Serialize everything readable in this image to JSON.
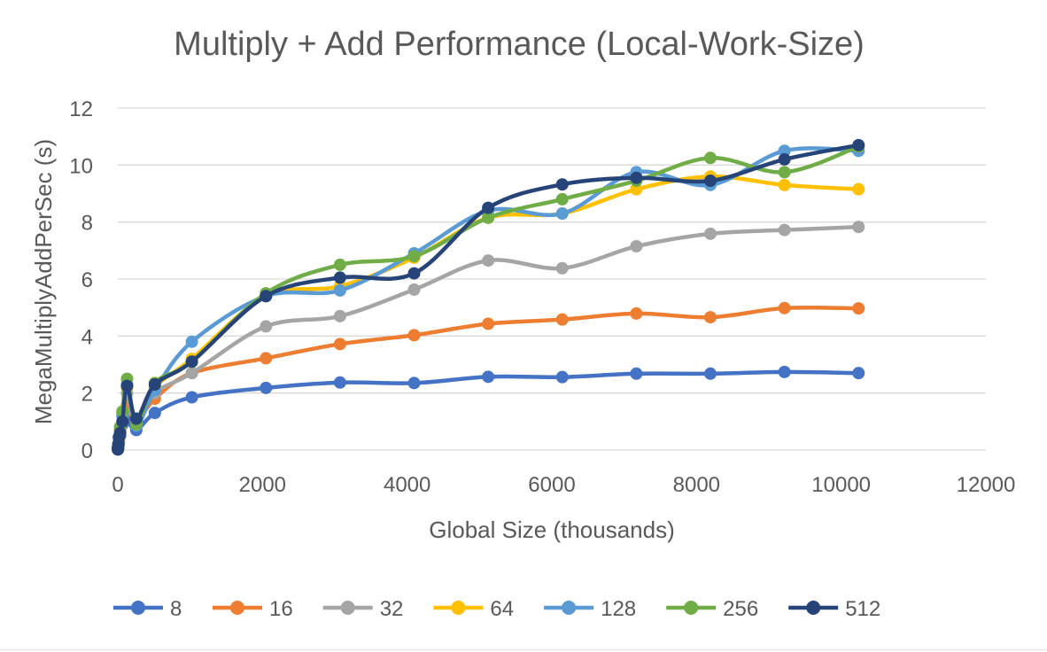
{
  "chart_data": {
    "type": "line",
    "title": "Multiply + Add Performance (Local-Work-Size)",
    "xlabel": "Global Size (thousands)",
    "ylabel": "MegaMultiplyAddPerSec (s)",
    "xlim": [
      0,
      12000
    ],
    "ylim": [
      0,
      12
    ],
    "xticks": [
      "0",
      "2000",
      "4000",
      "6000",
      "8000",
      "10000",
      "12000"
    ],
    "yticks": [
      "0",
      "2",
      "4",
      "6",
      "8",
      "10",
      "12"
    ],
    "grid": "horizontal",
    "smooth": true,
    "legend_position": "bottom",
    "x": [
      1,
      2,
      4,
      8,
      16,
      32,
      64,
      128,
      256,
      512,
      1024,
      2048,
      3072,
      4096,
      5120,
      6144,
      7168,
      8192,
      9216,
      10240
    ],
    "series": [
      {
        "name": "8",
        "color": "#4472C4",
        "values": [
          0.02,
          0.04,
          0.08,
          0.15,
          0.3,
          0.5,
          0.9,
          1.05,
          0.7,
          1.3,
          1.85,
          2.18,
          2.37,
          2.35,
          2.57,
          2.56,
          2.68,
          2.68,
          2.74,
          2.7
        ]
      },
      {
        "name": "16",
        "color": "#ED7D31",
        "values": [
          0.02,
          0.05,
          0.1,
          0.2,
          0.4,
          0.7,
          1.2,
          1.6,
          1.0,
          1.8,
          2.7,
          3.22,
          3.72,
          4.03,
          4.43,
          4.58,
          4.79,
          4.66,
          4.98,
          4.97
        ]
      },
      {
        "name": "32",
        "color": "#A5A5A5",
        "values": [
          0.02,
          0.05,
          0.1,
          0.2,
          0.45,
          0.8,
          1.3,
          2.0,
          0.9,
          2.0,
          2.7,
          4.34,
          4.7,
          5.63,
          6.65,
          6.38,
          7.15,
          7.59,
          7.72,
          7.83
        ]
      },
      {
        "name": "64",
        "color": "#FFC000",
        "values": [
          0.02,
          0.05,
          0.1,
          0.2,
          0.45,
          0.8,
          1.35,
          2.2,
          1.0,
          2.2,
          3.2,
          5.4,
          5.75,
          6.75,
          8.15,
          8.3,
          9.15,
          9.6,
          9.3,
          9.15
        ]
      },
      {
        "name": "128",
        "color": "#5B9BD5",
        "values": [
          0.02,
          0.05,
          0.1,
          0.2,
          0.45,
          0.8,
          1.2,
          2.3,
          0.85,
          2.1,
          3.8,
          5.4,
          5.6,
          6.9,
          8.4,
          8.3,
          9.75,
          9.3,
          10.5,
          10.5
        ]
      },
      {
        "name": "256",
        "color": "#70AD47",
        "values": [
          0.02,
          0.05,
          0.1,
          0.2,
          0.45,
          0.8,
          1.35,
          2.5,
          0.9,
          2.35,
          3.1,
          5.5,
          6.5,
          6.8,
          8.15,
          8.8,
          9.45,
          10.25,
          9.75,
          10.65
        ]
      },
      {
        "name": "512",
        "color": "#264478",
        "values": [
          0.02,
          0.05,
          0.1,
          0.2,
          0.45,
          0.6,
          1.0,
          2.25,
          1.1,
          2.3,
          3.1,
          5.4,
          6.05,
          6.2,
          8.5,
          9.32,
          9.55,
          9.45,
          10.2,
          10.7
        ]
      }
    ]
  }
}
